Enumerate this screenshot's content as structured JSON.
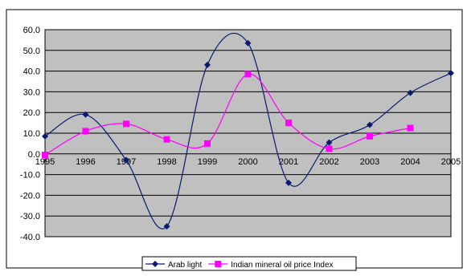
{
  "chart_data": {
    "type": "line",
    "title": "",
    "xlabel": "",
    "ylabel": "",
    "x": [
      "1995",
      "1996",
      "1997",
      "1998",
      "1999",
      "2000",
      "2001",
      "2002",
      "2003",
      "2004",
      "2005"
    ],
    "ylim": [
      -40,
      60
    ],
    "y_ticks": [
      60,
      50,
      40,
      30,
      20,
      10,
      0,
      -10,
      -20,
      -30,
      -40
    ],
    "y_tick_labels": [
      "60.0",
      "50.0",
      "40.0",
      "30.0",
      "20.0",
      "10.0",
      "0.0",
      "-10.0",
      "-20.0",
      "-30.0",
      "-40.0"
    ],
    "grid": true,
    "smooth": true,
    "legend_position": "bottom",
    "series": [
      {
        "name": "Arab light",
        "values": [
          8.5,
          19.0,
          -3.0,
          -35.0,
          43.0,
          53.5,
          -14.0,
          5.5,
          14.0,
          29.5,
          39.0
        ],
        "color": "#0a1a6e",
        "marker": "diamond"
      },
      {
        "name": "Indian mineral oil price Index",
        "values": [
          -0.5,
          11.0,
          14.5,
          7.0,
          5.0,
          38.5,
          15.0,
          2.5,
          8.5,
          12.5,
          null
        ],
        "color": "#ff00ff",
        "marker": "square"
      }
    ],
    "colors": {
      "plot_bg": "#c0c0c0",
      "grid": "#000000"
    }
  }
}
